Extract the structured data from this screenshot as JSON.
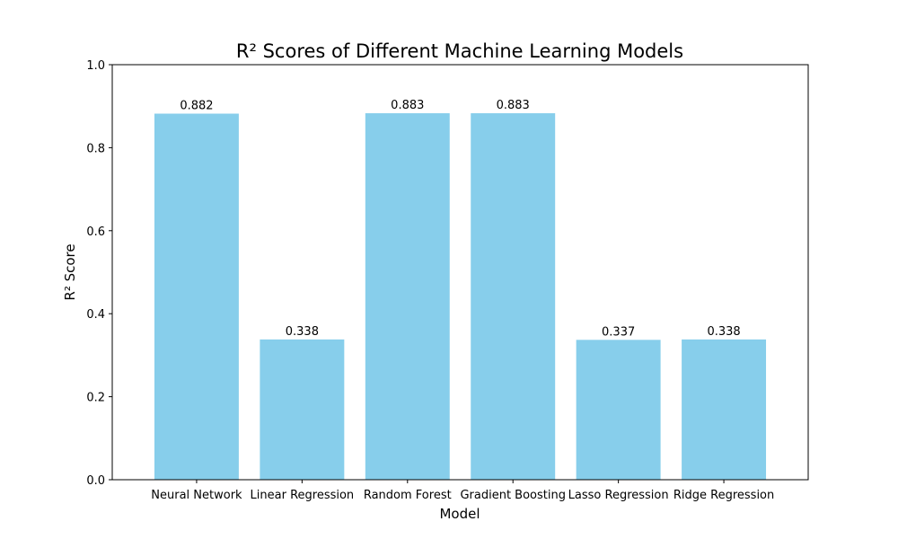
{
  "chart_data": {
    "type": "bar",
    "title": "R² Scores of Different Machine Learning Models",
    "xlabel": "Model",
    "ylabel": "R² Score",
    "categories": [
      "Neural Network",
      "Linear Regression",
      "Random Forest",
      "Gradient Boosting",
      "Lasso Regression",
      "Ridge Regression"
    ],
    "values": [
      0.882,
      0.338,
      0.883,
      0.883,
      0.337,
      0.338
    ],
    "value_labels": [
      "0.882",
      "0.338",
      "0.883",
      "0.883",
      "0.337",
      "0.338"
    ],
    "ylim": [
      0,
      1.0
    ],
    "yticks": [
      0.0,
      0.2,
      0.4,
      0.6,
      0.8,
      1.0
    ],
    "ytick_labels": [
      "0.0",
      "0.2",
      "0.4",
      "0.6",
      "0.8",
      "1.0"
    ],
    "grid": false,
    "legend": false,
    "bar_color": "#87CEEB"
  }
}
